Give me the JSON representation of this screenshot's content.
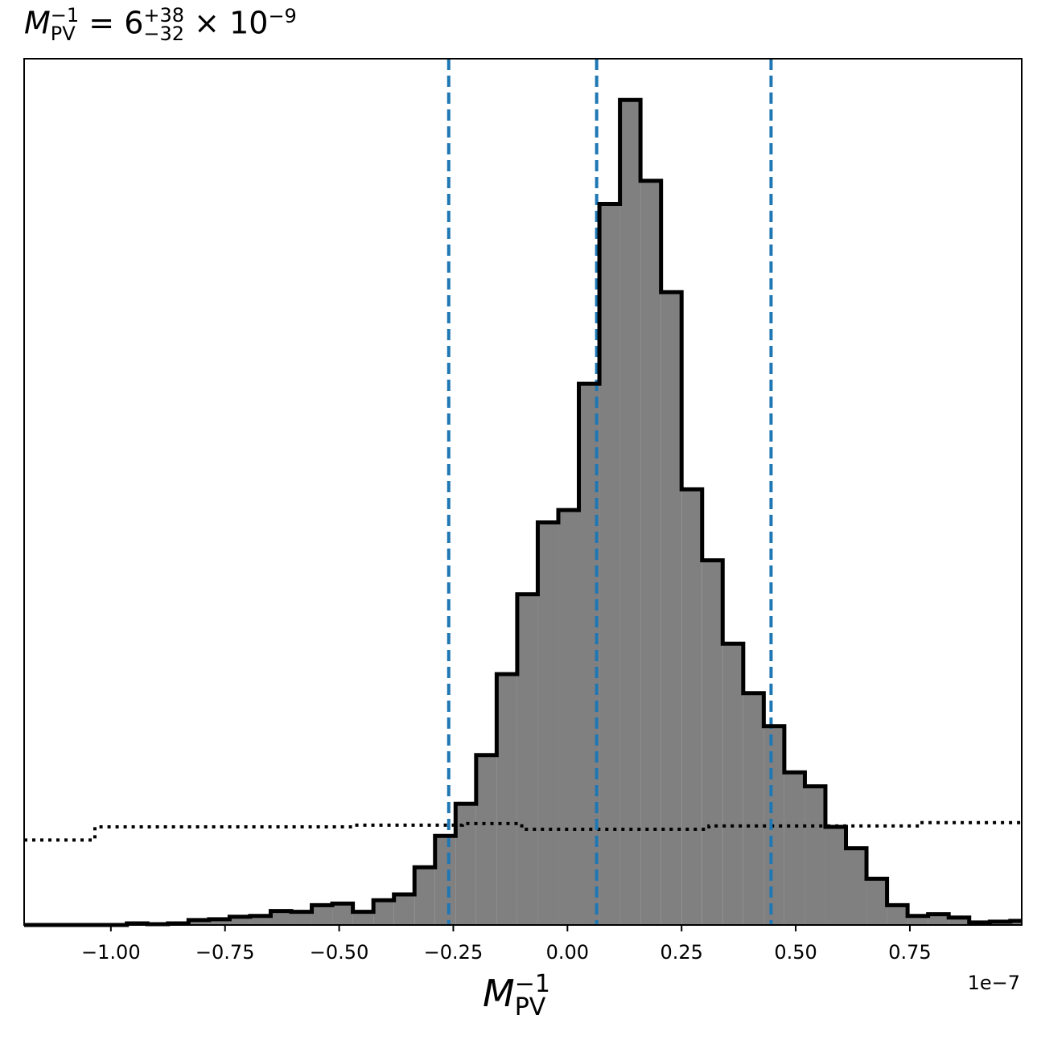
{
  "chart_data": {
    "type": "histogram",
    "title_parts": {
      "symbol": "M",
      "sub": "PV",
      "sup": "−1",
      "median": "6",
      "plus": "+38",
      "minus": "−32",
      "times": "× 10",
      "exp": "−9"
    },
    "xlabel_parts": {
      "symbol": "M",
      "sub": "PV",
      "sup": "−1"
    },
    "offset_text": "1e−7",
    "xlim": [
      -1.19,
      0.995
    ],
    "ylim": [
      0,
      1.05
    ],
    "x_scale_factor": "1e-7",
    "xticks": [
      -1.0,
      -0.75,
      -0.5,
      -0.25,
      0.0,
      0.25,
      0.5,
      0.75
    ],
    "xtick_labels": [
      "−1.00",
      "−0.75",
      "−0.50",
      "−0.25",
      "0.00",
      "0.25",
      "0.50",
      "0.75"
    ],
    "bin_edges": [
      -1.19,
      -1.145,
      -1.1,
      -1.055,
      -1.01,
      -0.965,
      -0.92,
      -0.875,
      -0.83,
      -0.785,
      -0.74,
      -0.695,
      -0.65,
      -0.605,
      -0.56,
      -0.515,
      -0.47,
      -0.425,
      -0.38,
      -0.335,
      -0.29,
      -0.245,
      -0.2,
      -0.155,
      -0.11,
      -0.065,
      -0.02,
      0.025,
      0.07,
      0.115,
      0.16,
      0.205,
      0.25,
      0.295,
      0.34,
      0.385,
      0.43,
      0.475,
      0.52,
      0.565,
      0.61,
      0.655,
      0.7,
      0.745,
      0.79,
      0.835,
      0.88,
      0.925,
      0.97,
      0.995
    ],
    "counts": [
      0,
      0,
      0,
      0,
      0,
      0.002,
      0.001,
      0.002,
      0.006,
      0.007,
      0.01,
      0.011,
      0.017,
      0.016,
      0.024,
      0.026,
      0.016,
      0.03,
      0.037,
      0.07,
      0.108,
      0.147,
      0.206,
      0.304,
      0.401,
      0.488,
      0.503,
      0.656,
      0.874,
      1.0,
      0.902,
      0.767,
      0.528,
      0.442,
      0.341,
      0.281,
      0.241,
      0.185,
      0.168,
      0.119,
      0.093,
      0.056,
      0.024,
      0.011,
      0.013,
      0.009,
      0.003,
      0.004,
      0.005
    ],
    "prior_x": [
      -1.19,
      -1.035,
      -1.035,
      -0.47,
      -0.47,
      -0.23,
      -0.23,
      -0.1,
      -0.1,
      0.31,
      0.31,
      0.77,
      0.77,
      0.995
    ],
    "prior_y": [
      0.103,
      0.103,
      0.119,
      0.119,
      0.121,
      0.121,
      0.123,
      0.123,
      0.116,
      0.116,
      0.12,
      0.12,
      0.124,
      0.124
    ],
    "quantiles": [
      -0.26,
      0.064,
      0.446
    ],
    "colors": {
      "fill": "#808080",
      "edge": "#000000",
      "quantile": "#1f77b4",
      "prior": "#000000"
    },
    "grid": false
  }
}
